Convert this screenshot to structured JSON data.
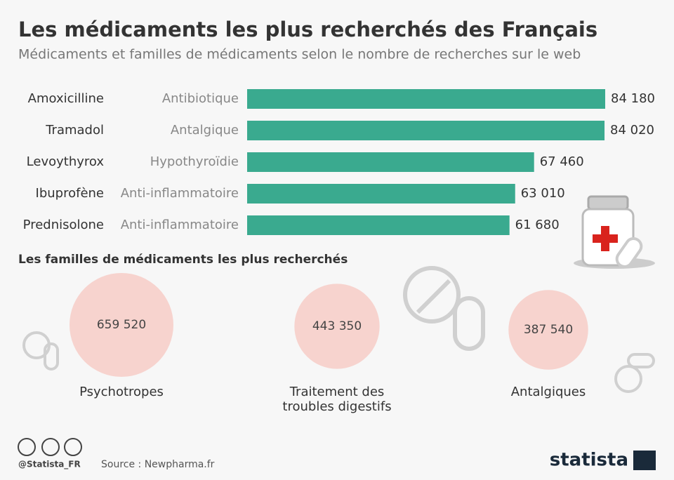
{
  "header": {
    "title": "Les médicaments les plus recherchés des Français",
    "subtitle": "Médicaments et familles de médicaments selon le nombre de recherches sur le web"
  },
  "chart_data": [
    {
      "type": "bar",
      "categories": [
        "Amoxicilline",
        "Tramadol",
        "Levoythyrox",
        "Ibuprofène",
        "Prednisolone"
      ],
      "groups": [
        "Antibiotique",
        "Antalgique",
        "Hypothyroïdie",
        "Anti-inflammatoire",
        "Anti-inflammatoire"
      ],
      "values": [
        84180,
        84020,
        67460,
        63010,
        61680
      ],
      "value_labels": [
        "84 180",
        "84 020",
        "67 460",
        "63 010",
        "61 680"
      ],
      "color": "#3aaa8f"
    },
    {
      "type": "bubble",
      "title": "Les familles de médicaments les plus recherchés",
      "categories": [
        "Psychotropes",
        "Traitement des troubles digestifs",
        "Antalgiques"
      ],
      "values": [
        659520,
        443350,
        387540
      ],
      "value_labels": [
        "659 520",
        "443 350",
        "387 540"
      ],
      "color": "#f7d3ce"
    }
  ],
  "footer": {
    "handle": "@Statista_FR",
    "source": "Source : Newpharma.fr",
    "brand": "statista"
  }
}
